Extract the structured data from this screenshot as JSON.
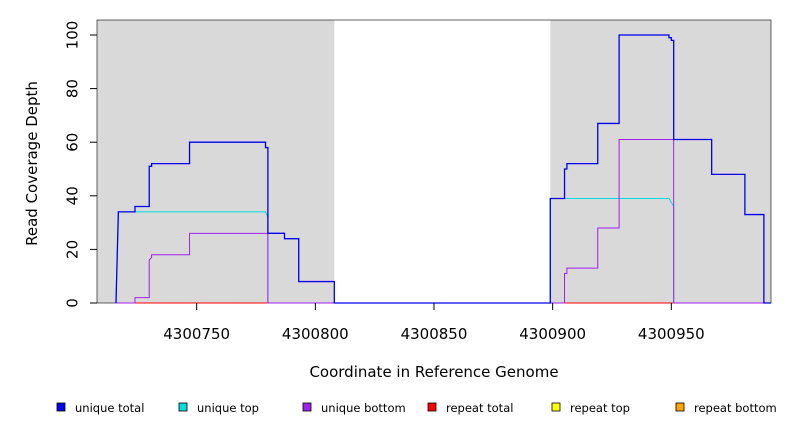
{
  "chart_data": {
    "type": "line",
    "title": "",
    "xlabel": "Coordinate in Reference Genome",
    "ylabel": "Read Coverage Depth",
    "xlim": [
      4300708,
      4300992
    ],
    "ylim": [
      0,
      100
    ],
    "xticks": [
      4300750,
      4300800,
      4300850,
      4300900,
      4300950
    ],
    "yticks": [
      0,
      20,
      40,
      60,
      80,
      100
    ],
    "grid": false,
    "legend_position": "bottom",
    "shaded_ranges": [
      [
        4300708,
        4300808
      ],
      [
        4300899,
        4300992
      ]
    ],
    "shade_color": "#d9d9d9",
    "series": [
      {
        "name": "unique total",
        "color": "#0000ee",
        "points": [
          [
            4300716,
            0
          ],
          [
            4300717,
            34
          ],
          [
            4300724,
            34
          ],
          [
            4300724,
            36
          ],
          [
            4300730,
            36
          ],
          [
            4300730,
            51
          ],
          [
            4300731,
            51
          ],
          [
            4300731,
            52
          ],
          [
            4300747,
            52
          ],
          [
            4300747,
            60
          ],
          [
            4300779,
            60
          ],
          [
            4300779,
            58
          ],
          [
            4300780,
            58
          ],
          [
            4300780,
            26
          ],
          [
            4300787,
            26
          ],
          [
            4300787,
            24
          ],
          [
            4300793,
            24
          ],
          [
            4300793,
            8
          ],
          [
            4300808,
            8
          ],
          [
            4300808,
            0
          ],
          [
            4300899,
            0
          ],
          [
            4300899,
            39
          ],
          [
            4300905,
            39
          ],
          [
            4300905,
            50
          ],
          [
            4300906,
            50
          ],
          [
            4300906,
            52
          ],
          [
            4300919,
            52
          ],
          [
            4300919,
            67
          ],
          [
            4300928,
            67
          ],
          [
            4300928,
            100
          ],
          [
            4300949,
            100
          ],
          [
            4300949,
            99
          ],
          [
            4300950,
            99
          ],
          [
            4300950,
            98
          ],
          [
            4300951,
            98
          ],
          [
            4300951,
            61
          ],
          [
            4300967,
            61
          ],
          [
            4300967,
            48
          ],
          [
            4300981,
            48
          ],
          [
            4300981,
            33
          ],
          [
            4300989,
            33
          ],
          [
            4300989,
            0
          ],
          [
            4300992,
            0
          ]
        ]
      },
      {
        "name": "unique top",
        "color": "#00dddd",
        "points": [
          [
            4300716,
            0
          ],
          [
            4300717,
            34
          ],
          [
            4300779,
            34
          ],
          [
            4300780,
            32
          ],
          [
            4300780,
            0
          ],
          [
            4300899,
            0
          ],
          [
            4300899,
            39
          ],
          [
            4300949,
            39
          ],
          [
            4300951,
            36
          ],
          [
            4300951,
            0
          ],
          [
            4300992,
            0
          ]
        ]
      },
      {
        "name": "unique bottom",
        "color": "#a020f0",
        "points": [
          [
            4300716,
            0
          ],
          [
            4300724,
            0
          ],
          [
            4300724,
            2
          ],
          [
            4300730,
            2
          ],
          [
            4300730,
            16
          ],
          [
            4300731,
            17
          ],
          [
            4300731,
            18
          ],
          [
            4300747,
            18
          ],
          [
            4300747,
            26
          ],
          [
            4300780,
            26
          ],
          [
            4300780,
            0
          ],
          [
            4300905,
            0
          ],
          [
            4300905,
            11
          ],
          [
            4300906,
            11
          ],
          [
            4300906,
            13
          ],
          [
            4300919,
            13
          ],
          [
            4300919,
            28
          ],
          [
            4300928,
            28
          ],
          [
            4300928,
            61
          ],
          [
            4300951,
            61
          ],
          [
            4300951,
            0
          ],
          [
            4300992,
            0
          ]
        ]
      },
      {
        "name": "repeat total",
        "color": "#ff0000",
        "points": [
          [
            4300716,
            0
          ],
          [
            4300992,
            0
          ]
        ]
      },
      {
        "name": "repeat top",
        "color": "#ffff00",
        "points": [
          [
            4300716,
            0
          ],
          [
            4300992,
            0
          ]
        ]
      },
      {
        "name": "repeat bottom",
        "color": "#ffa500",
        "points": [
          [
            4300716,
            0
          ],
          [
            4300992,
            0
          ]
        ]
      }
    ]
  }
}
